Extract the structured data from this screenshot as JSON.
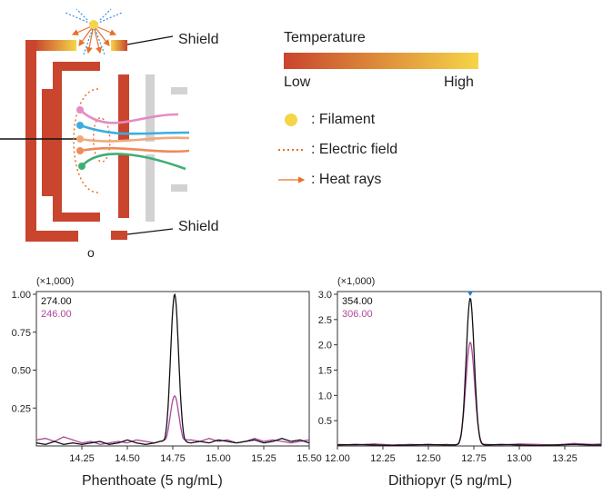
{
  "diagram": {
    "shield_top_label": "Shield",
    "shield_bottom_label": "Shield",
    "small_circle_label": "o"
  },
  "legend": {
    "temperature_title": "Temperature",
    "low_label": "Low",
    "high_label": "High",
    "gradient_colors": [
      "#c9452e",
      "#f5d547"
    ],
    "items": [
      {
        "icon": "filament-dot-icon",
        "label": ": Filament",
        "color": "#f5d547"
      },
      {
        "icon": "dotted-line-icon",
        "label": ": Electric field",
        "color": "#e8702a"
      },
      {
        "icon": "arrow-icon",
        "label": ": Heat rays",
        "color": "#e8702a"
      }
    ]
  },
  "chart_data": [
    {
      "type": "line",
      "title": "Phenthoate (5 ng/mL)",
      "multiplier_label": "(×1,000)",
      "xlim": [
        14.0,
        15.5
      ],
      "ylim": [
        0,
        1.0
      ],
      "xticks": [
        14.25,
        14.5,
        14.75,
        15.0,
        15.25,
        15.5
      ],
      "xtick_labels": [
        "14.25",
        "14.50",
        "14.75",
        "15.00",
        "15.25",
        "15.50"
      ],
      "yticks": [
        0.25,
        0.5,
        0.75,
        1.0
      ],
      "ytick_labels": [
        "0.25",
        "0.50",
        "0.75",
        "1.00"
      ],
      "series": [
        {
          "name": "274.00",
          "color": "#111111",
          "peak_x": 14.76,
          "peak_height": 1.0,
          "width": 0.022,
          "baseline": [
            [
              14.0,
              0.02
            ],
            [
              14.05,
              0.01
            ],
            [
              14.1,
              0.03
            ],
            [
              14.15,
              0.01
            ],
            [
              14.2,
              0.02
            ],
            [
              14.25,
              0.01
            ],
            [
              14.3,
              0.02
            ],
            [
              14.35,
              0.03
            ],
            [
              14.4,
              0.01
            ],
            [
              14.45,
              0.02
            ],
            [
              14.5,
              0.04
            ],
            [
              14.55,
              0.02
            ],
            [
              14.6,
              0.01
            ],
            [
              14.65,
              0.02
            ],
            [
              14.68,
              0.03
            ],
            [
              14.85,
              0.02
            ],
            [
              14.9,
              0.03
            ],
            [
              14.95,
              0.02
            ],
            [
              15.0,
              0.04
            ],
            [
              15.05,
              0.03
            ],
            [
              15.1,
              0.02
            ],
            [
              15.15,
              0.03
            ],
            [
              15.2,
              0.04
            ],
            [
              15.25,
              0.02
            ],
            [
              15.3,
              0.03
            ],
            [
              15.35,
              0.05
            ],
            [
              15.4,
              0.03
            ],
            [
              15.45,
              0.04
            ],
            [
              15.5,
              0.02
            ]
          ]
        },
        {
          "name": "246.00",
          "color": "#b0479b",
          "peak_x": 14.76,
          "peak_height": 0.33,
          "width": 0.024,
          "baseline": [
            [
              14.0,
              0.04
            ],
            [
              14.05,
              0.05
            ],
            [
              14.1,
              0.03
            ],
            [
              14.15,
              0.06
            ],
            [
              14.2,
              0.04
            ],
            [
              14.25,
              0.02
            ],
            [
              14.3,
              0.03
            ],
            [
              14.35,
              0.01
            ],
            [
              14.4,
              0.02
            ],
            [
              14.45,
              0.03
            ],
            [
              14.5,
              0.02
            ],
            [
              14.55,
              0.04
            ],
            [
              14.6,
              0.03
            ],
            [
              14.65,
              0.02
            ],
            [
              14.68,
              0.03
            ],
            [
              14.85,
              0.04
            ],
            [
              14.9,
              0.03
            ],
            [
              14.95,
              0.05
            ],
            [
              15.0,
              0.03
            ],
            [
              15.05,
              0.04
            ],
            [
              15.1,
              0.02
            ],
            [
              15.15,
              0.03
            ],
            [
              15.2,
              0.05
            ],
            [
              15.25,
              0.03
            ],
            [
              15.3,
              0.04
            ],
            [
              15.35,
              0.03
            ],
            [
              15.4,
              0.02
            ],
            [
              15.45,
              0.03
            ],
            [
              15.5,
              0.04
            ]
          ]
        }
      ],
      "peak_marker": false
    },
    {
      "type": "line",
      "title": "Dithiopyr (5 ng/mL)",
      "multiplier_label": "(×1,000)",
      "xlim": [
        12.0,
        13.45
      ],
      "ylim": [
        0,
        3.0
      ],
      "xticks": [
        12.0,
        12.25,
        12.5,
        12.75,
        13.0,
        13.25
      ],
      "xtick_labels": [
        "12.00",
        "12.25",
        "12.50",
        "12.75",
        "13.00",
        "13.25"
      ],
      "yticks": [
        0.5,
        1.0,
        1.5,
        2.0,
        2.5,
        3.0
      ],
      "ytick_labels": [
        "0.5",
        "1.0",
        "1.5",
        "2.0",
        "2.5",
        "3.0"
      ],
      "series": [
        {
          "name": "354.00",
          "color": "#111111",
          "peak_x": 12.73,
          "peak_height": 2.92,
          "width": 0.022,
          "baseline": [
            [
              12.0,
              0.02
            ],
            [
              12.1,
              0.03
            ],
            [
              12.2,
              0.02
            ],
            [
              12.3,
              0.01
            ],
            [
              12.4,
              0.02
            ],
            [
              12.5,
              0.03
            ],
            [
              12.6,
              0.02
            ],
            [
              12.65,
              0.02
            ],
            [
              12.82,
              0.02
            ],
            [
              12.9,
              0.03
            ],
            [
              13.0,
              0.02
            ],
            [
              13.1,
              0.01
            ],
            [
              13.2,
              0.02
            ],
            [
              13.3,
              0.03
            ],
            [
              13.4,
              0.02
            ],
            [
              13.45,
              0.02
            ]
          ]
        },
        {
          "name": "306.00",
          "color": "#b0479b",
          "peak_x": 12.73,
          "peak_height": 2.05,
          "width": 0.024,
          "baseline": [
            [
              12.0,
              0.03
            ],
            [
              12.1,
              0.02
            ],
            [
              12.2,
              0.04
            ],
            [
              12.3,
              0.02
            ],
            [
              12.4,
              0.03
            ],
            [
              12.5,
              0.02
            ],
            [
              12.6,
              0.03
            ],
            [
              12.65,
              0.02
            ],
            [
              12.82,
              0.03
            ],
            [
              12.9,
              0.02
            ],
            [
              13.0,
              0.04
            ],
            [
              13.1,
              0.03
            ],
            [
              13.2,
              0.02
            ],
            [
              13.3,
              0.05
            ],
            [
              13.4,
              0.03
            ],
            [
              13.45,
              0.04
            ]
          ]
        }
      ],
      "peak_marker": true
    }
  ]
}
